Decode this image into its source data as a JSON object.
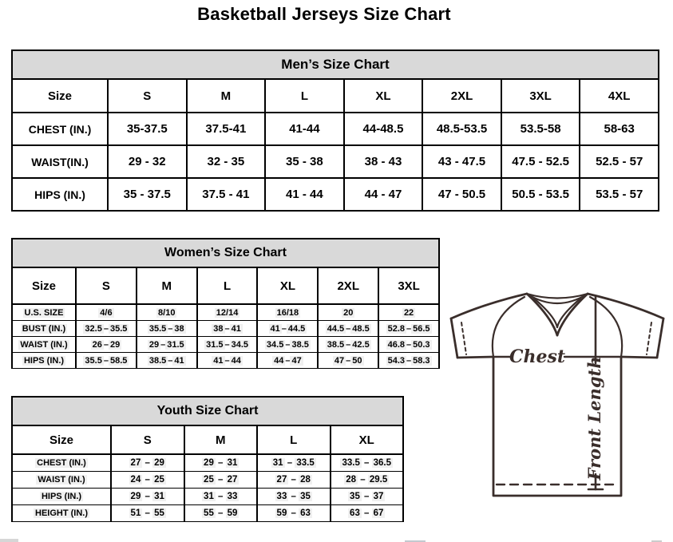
{
  "page_title": "Basketball Jerseys Size Chart",
  "tables": {
    "men": {
      "title": "Men’s Size Chart",
      "highlight": false,
      "columns": [
        "Size",
        "S",
        "M",
        "L",
        "XL",
        "2XL",
        "3XL",
        "4XL"
      ],
      "rows": [
        {
          "label": "CHEST (IN.)",
          "values": [
            "35-37.5",
            "37.5-41",
            "41-44",
            "44-48.5",
            "48.5-53.5",
            "53.5-58",
            "58-63"
          ]
        },
        {
          "label": "WAIST(IN.)",
          "values": [
            "29 - 32",
            "32 - 35",
            "35 - 38",
            "38 - 43",
            "43 - 47.5",
            "47.5 - 52.5",
            "52.5 - 57"
          ]
        },
        {
          "label": "HIPS (IN.)",
          "values": [
            "35 - 37.5",
            "37.5 - 41",
            "41 - 44",
            "44 - 47",
            "47 - 50.5",
            "50.5 - 53.5",
            "53.5 - 57"
          ]
        }
      ]
    },
    "women": {
      "title": "Women’s Size Chart",
      "highlight": true,
      "columns": [
        "Size",
        "S",
        "M",
        "L",
        "XL",
        "2XL",
        "3XL"
      ],
      "rows": [
        {
          "label": "U.S. SIZE",
          "values": [
            "4/6",
            "8/10",
            "12/14",
            "16/18",
            "20",
            "22"
          ]
        },
        {
          "label": "BUST (IN.)",
          "values": [
            "32.5–35.5",
            "35.5–38",
            "38–41",
            "41–44.5",
            "44.5–48.5",
            "52.8–56.5"
          ]
        },
        {
          "label": "WAIST (IN.)",
          "values": [
            "26–29",
            "29–31.5",
            "31.5–34.5",
            "34.5–38.5",
            "38.5–42.5",
            "46.8–50.3"
          ]
        },
        {
          "label": "HIPS (IN.)",
          "values": [
            "35.5–58.5",
            "38.5–41",
            "41–44",
            "44–47",
            "47–50",
            "54.3–58.3"
          ]
        }
      ]
    },
    "youth": {
      "title": "Youth Size Chart",
      "highlight": true,
      "columns": [
        "Size",
        "S",
        "M",
        "L",
        "XL"
      ],
      "rows": [
        {
          "label": "CHEST (IN.)",
          "values": [
            "27 – 29",
            "29 – 31",
            "31 – 33.5",
            "33.5 – 36.5"
          ]
        },
        {
          "label": "WAIST (IN.)",
          "values": [
            "24 – 25",
            "25 – 27",
            "27 – 28",
            "28 – 29.5"
          ]
        },
        {
          "label": "HIPS (IN.)",
          "values": [
            "29 – 31",
            "31 – 33",
            "33 – 35",
            "35 – 37"
          ]
        },
        {
          "label": "HEIGHT (IN.)",
          "values": [
            "51 – 55",
            "55 – 59",
            "59 – 63",
            "63 – 67"
          ]
        }
      ]
    }
  },
  "diagram": {
    "chest_label": "Chest",
    "front_length_label": "Front Length",
    "outline_color": "#3a2e2b"
  },
  "colors": {
    "header_band": "#d9d9d9",
    "border": "#000000",
    "text": "#000000",
    "value_highlight": "#f0f0f0"
  }
}
